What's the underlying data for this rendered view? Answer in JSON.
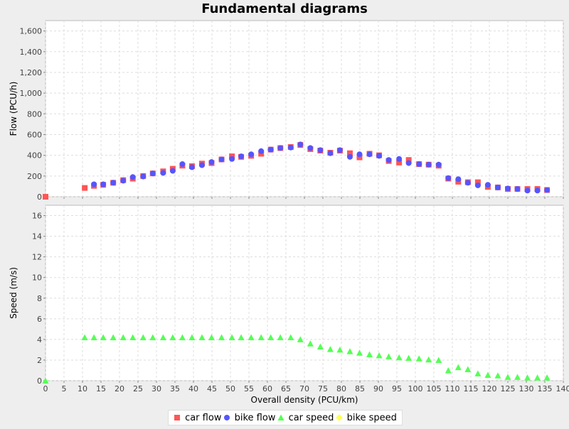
{
  "chart_data": {
    "title": "Fundamental diagrams",
    "xlabel": "Overall density (PCU/km)",
    "type": "scatter",
    "xlim": [
      0,
      140
    ],
    "x_ticks": [
      0,
      5,
      10,
      15,
      20,
      25,
      30,
      35,
      40,
      45,
      50,
      55,
      60,
      65,
      70,
      75,
      80,
      85,
      90,
      95,
      100,
      105,
      110,
      115,
      120,
      125,
      130,
      135,
      140
    ],
    "grid": true,
    "legend_placement": "bottom",
    "legend": [
      {
        "name": "car flow",
        "color": "#ff5555",
        "shape": "square"
      },
      {
        "name": "bike flow",
        "color": "#5555ff",
        "shape": "circle"
      },
      {
        "name": "car speed",
        "color": "#55ff55",
        "shape": "triangle"
      },
      {
        "name": "bike speed",
        "color": "#ffff55",
        "shape": "diamond"
      }
    ],
    "subplots": [
      {
        "ylabel": "Flow (PCU/h)",
        "ylim": [
          0,
          1700
        ],
        "y_ticks": [
          0,
          200,
          400,
          600,
          800,
          1000,
          1200,
          1400,
          1600
        ],
        "y_tick_labels": [
          "0",
          "200",
          "400",
          "600",
          "800",
          "1,000",
          "1,200",
          "1,400",
          "1,600"
        ],
        "series": [
          {
            "name": "car flow",
            "color": "#ff5555",
            "shape": "square",
            "x": [
              0,
              10.6,
              13.1,
              15.6,
              18.3,
              21,
              23.6,
              26.4,
              29,
              31.8,
              34.4,
              37,
              39.6,
              42.3,
              44.9,
              47.6,
              50.4,
              52.9,
              55.6,
              58.3,
              60.9,
              63.5,
              66.3,
              68.9,
              71.6,
              74.3,
              77,
              79.6,
              82.3,
              84.9,
              87.6,
              90.2,
              92.8,
              95.6,
              98.2,
              101,
              103.6,
              106.3,
              108.9,
              111.6,
              114.2,
              116.9,
              119.6,
              122.3,
              125,
              127.6,
              130.3,
              133,
              135.6
            ],
            "y": [
              0,
              85,
              105,
              115,
              135,
              160,
              175,
              200,
              225,
              245,
              270,
              300,
              295,
              320,
              325,
              360,
              390,
              385,
              395,
              415,
              455,
              470,
              480,
              500,
              460,
              445,
              425,
              445,
              420,
              380,
              415,
              400,
              345,
              330,
              355,
              315,
              310,
              300,
              175,
              145,
              140,
              140,
              95,
              90,
              75,
              75,
              75,
              75,
              65
            ]
          },
          {
            "name": "bike flow",
            "color": "#5555ff",
            "shape": "circle",
            "x": [
              13.1,
              15.6,
              18.3,
              21,
              23.6,
              26.4,
              29,
              31.8,
              34.4,
              37,
              39.6,
              42.3,
              44.9,
              47.6,
              50.4,
              52.9,
              55.6,
              58.3,
              60.9,
              63.5,
              66.3,
              68.9,
              71.6,
              74.3,
              77,
              79.6,
              82.3,
              84.9,
              87.6,
              90.2,
              92.8,
              95.6,
              98.2,
              101,
              103.6,
              106.3,
              108.9,
              111.6,
              114.2,
              116.9,
              119.6,
              122.3,
              125,
              127.6,
              130.3,
              133,
              135.6
            ],
            "y": [
              120,
              120,
              135,
              155,
              190,
              195,
              225,
              230,
              250,
              315,
              285,
              305,
              335,
              360,
              365,
              390,
              410,
              440,
              455,
              470,
              475,
              505,
              470,
              450,
              420,
              450,
              385,
              410,
              410,
              395,
              355,
              365,
              325,
              315,
              310,
              310,
              180,
              170,
              135,
              110,
              115,
              90,
              80,
              75,
              60,
              60,
              65
            ]
          },
          {
            "name": "bike speed",
            "color": "#ffff55",
            "shape": "diamond",
            "x": [],
            "y": []
          }
        ]
      },
      {
        "ylabel": "Speed (m/s)",
        "ylim": [
          0,
          17
        ],
        "y_ticks": [
          0,
          2,
          4,
          6,
          8,
          10,
          12,
          14,
          16
        ],
        "y_tick_labels": [
          "0",
          "2",
          "4",
          "6",
          "8",
          "10",
          "12",
          "14",
          "16"
        ],
        "series": [
          {
            "name": "car speed",
            "color": "#55ff55",
            "shape": "triangle",
            "x": [
              0,
              10.6,
              13.1,
              15.6,
              18.3,
              21,
              23.6,
              26.4,
              29,
              31.8,
              34.4,
              37,
              39.6,
              42.3,
              44.9,
              47.6,
              50.4,
              52.9,
              55.6,
              58.3,
              60.9,
              63.5,
              66.3,
              68.9,
              71.6,
              74.3,
              77,
              79.6,
              82.3,
              84.9,
              87.6,
              90.2,
              92.8,
              95.6,
              98.2,
              101,
              103.6,
              106.3,
              108.9,
              111.6,
              114.2,
              116.9,
              119.6,
              122.3,
              125,
              127.6,
              130.3,
              133,
              135.6
            ],
            "y": [
              0,
              4.2,
              4.2,
              4.2,
              4.2,
              4.2,
              4.2,
              4.2,
              4.2,
              4.2,
              4.2,
              4.2,
              4.2,
              4.2,
              4.2,
              4.2,
              4.2,
              4.2,
              4.2,
              4.2,
              4.2,
              4.2,
              4.2,
              4.0,
              3.6,
              3.3,
              3.05,
              3.0,
              2.85,
              2.7,
              2.55,
              2.45,
              2.35,
              2.25,
              2.2,
              2.15,
              2.05,
              2.0,
              1.0,
              1.3,
              1.1,
              0.7,
              0.55,
              0.5,
              0.35,
              0.35,
              0.3,
              0.3,
              0.3
            ]
          },
          {
            "name": "bike speed",
            "color": "#ffff55",
            "shape": "diamond",
            "x": [],
            "y": []
          }
        ]
      }
    ]
  }
}
